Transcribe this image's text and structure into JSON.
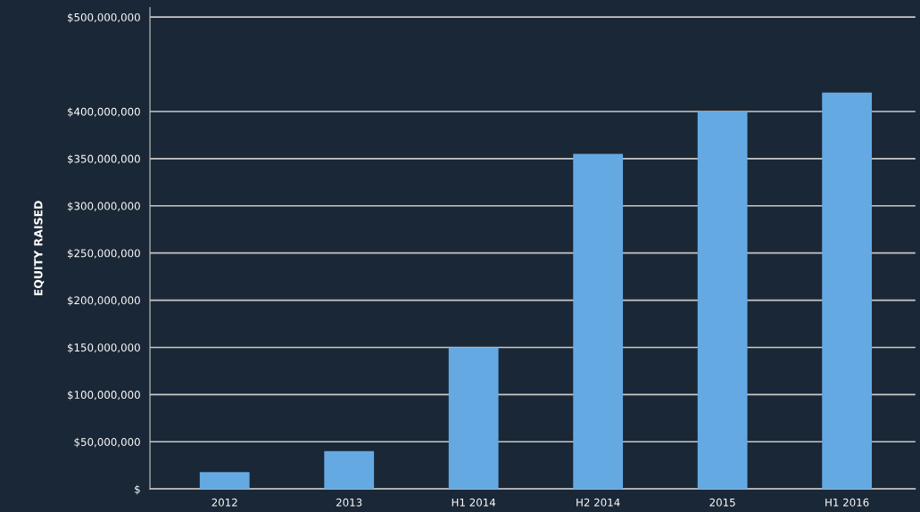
{
  "chart_data": {
    "type": "bar",
    "ylabel": "EQUITY RAISED",
    "categories": [
      "2012",
      "2013",
      "H1 2014",
      "H2 2014",
      "2015",
      "H1 2016"
    ],
    "values": [
      18000000,
      40000000,
      150000000,
      355000000,
      400000000,
      420000000
    ],
    "color": "#65a9e3",
    "ylim": [
      0,
      510000000
    ],
    "yticks": [
      {
        "value": 0,
        "label": "$"
      },
      {
        "value": 50000000,
        "label": "$50,000,000"
      },
      {
        "value": 100000000,
        "label": "$100,000,000"
      },
      {
        "value": 150000000,
        "label": "$150,000,000"
      },
      {
        "value": 200000000,
        "label": "$200,000,000"
      },
      {
        "value": 250000000,
        "label": "$250,000,000"
      },
      {
        "value": 300000000,
        "label": "$300,000,000"
      },
      {
        "value": 350000000,
        "label": "$350,000,000"
      },
      {
        "value": 400000000,
        "label": "$400,000,000"
      },
      {
        "value": 500000000,
        "label": "$500,000,000"
      }
    ],
    "grid": "y",
    "legend": false
  }
}
